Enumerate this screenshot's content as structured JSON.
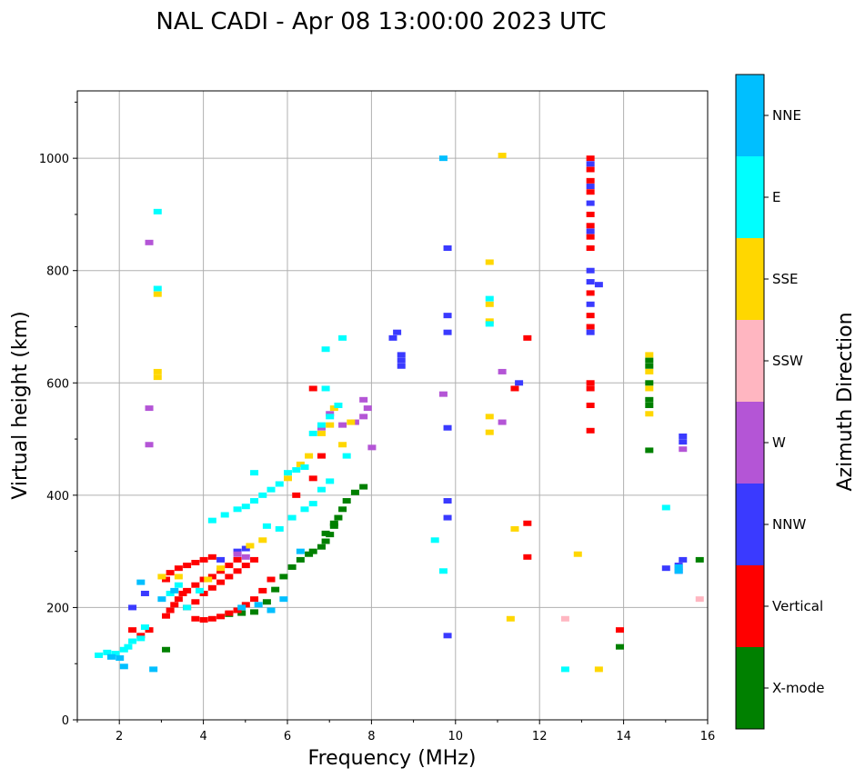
{
  "chart_data": {
    "type": "scatter",
    "title": "NAL CADI - Apr 08 13:00:00 2023 UTC",
    "xlabel": "Frequency (MHz)",
    "ylabel": "Virtual height (km)",
    "xlim": [
      1,
      16
    ],
    "ylim": [
      0,
      1120
    ],
    "xticks": [
      2,
      4,
      6,
      8,
      10,
      12,
      14,
      16
    ],
    "yticks": [
      0,
      200,
      400,
      600,
      800,
      1000
    ],
    "grid": true,
    "colorbar": {
      "title": "Azimuth Direction",
      "categories": [
        {
          "name": "X-mode",
          "color": "#008000"
        },
        {
          "name": "Vertical",
          "color": "#ff0000"
        },
        {
          "name": "NNW",
          "color": "#3a3aff"
        },
        {
          "name": "W",
          "color": "#b455d6"
        },
        {
          "name": "SSW",
          "color": "#ffb6c1"
        },
        {
          "name": "SSE",
          "color": "#ffd700"
        },
        {
          "name": "E",
          "color": "#00ffff"
        },
        {
          "name": "NNE",
          "color": "#00bfff"
        }
      ]
    },
    "series": [
      {
        "name": "X-mode",
        "points": [
          [
            3.1,
            125
          ],
          [
            4.6,
            188
          ],
          [
            4.9,
            190
          ],
          [
            5.2,
            192
          ],
          [
            5.5,
            210
          ],
          [
            5.7,
            232
          ],
          [
            5.9,
            255
          ],
          [
            6.1,
            272
          ],
          [
            6.3,
            285
          ],
          [
            6.5,
            295
          ],
          [
            6.6,
            300
          ],
          [
            6.8,
            308
          ],
          [
            6.9,
            318
          ],
          [
            7.0,
            330
          ],
          [
            7.1,
            345
          ],
          [
            7.2,
            360
          ],
          [
            7.3,
            375
          ],
          [
            7.4,
            390
          ],
          [
            7.6,
            405
          ],
          [
            7.8,
            415
          ],
          [
            6.9,
            332
          ],
          [
            7.1,
            350
          ],
          [
            14.6,
            480
          ],
          [
            14.6,
            560
          ],
          [
            14.6,
            570
          ],
          [
            14.6,
            600
          ],
          [
            14.6,
            630
          ],
          [
            14.6,
            640
          ],
          [
            15.8,
            285
          ],
          [
            13.9,
            130
          ]
        ]
      },
      {
        "name": "Vertical",
        "points": [
          [
            2.3,
            160
          ],
          [
            2.5,
            150
          ],
          [
            2.7,
            160
          ],
          [
            3.1,
            185
          ],
          [
            3.2,
            195
          ],
          [
            3.3,
            205
          ],
          [
            3.4,
            215
          ],
          [
            3.5,
            225
          ],
          [
            3.6,
            230
          ],
          [
            3.8,
            240
          ],
          [
            4.0,
            250
          ],
          [
            4.2,
            255
          ],
          [
            4.4,
            265
          ],
          [
            4.6,
            275
          ],
          [
            4.8,
            285
          ],
          [
            3.1,
            250
          ],
          [
            3.2,
            262
          ],
          [
            3.4,
            270
          ],
          [
            3.6,
            275
          ],
          [
            3.8,
            280
          ],
          [
            4.0,
            285
          ],
          [
            4.2,
            290
          ],
          [
            3.8,
            180
          ],
          [
            4.0,
            178
          ],
          [
            4.2,
            180
          ],
          [
            4.4,
            184
          ],
          [
            4.6,
            190
          ],
          [
            4.8,
            195
          ],
          [
            5.0,
            205
          ],
          [
            5.2,
            215
          ],
          [
            5.4,
            230
          ],
          [
            5.6,
            250
          ],
          [
            3.6,
            200
          ],
          [
            3.8,
            210
          ],
          [
            4.0,
            225
          ],
          [
            4.2,
            235
          ],
          [
            4.4,
            245
          ],
          [
            4.6,
            255
          ],
          [
            4.8,
            265
          ],
          [
            5.0,
            275
          ],
          [
            5.2,
            285
          ],
          [
            6.2,
            400
          ],
          [
            6.6,
            430
          ],
          [
            6.8,
            470
          ],
          [
            6.6,
            590
          ],
          [
            11.7,
            290
          ],
          [
            11.7,
            350
          ],
          [
            13.2,
            515
          ],
          [
            13.2,
            560
          ],
          [
            13.2,
            590
          ],
          [
            13.2,
            600
          ],
          [
            13.2,
            700
          ],
          [
            13.2,
            720
          ],
          [
            13.2,
            760
          ],
          [
            13.2,
            840
          ],
          [
            13.2,
            860
          ],
          [
            13.2,
            880
          ],
          [
            13.2,
            900
          ],
          [
            13.2,
            940
          ],
          [
            13.2,
            960
          ],
          [
            13.2,
            980
          ],
          [
            13.2,
            1000
          ],
          [
            13.9,
            160
          ],
          [
            11.4,
            590
          ],
          [
            11.7,
            680
          ]
        ]
      },
      {
        "name": "NNW",
        "points": [
          [
            2.3,
            200
          ],
          [
            2.6,
            225
          ],
          [
            4.4,
            285
          ],
          [
            4.8,
            300
          ],
          [
            5.0,
            305
          ],
          [
            8.5,
            680
          ],
          [
            8.6,
            690
          ],
          [
            8.7,
            630
          ],
          [
            8.7,
            640
          ],
          [
            8.7,
            650
          ],
          [
            9.8,
            150
          ],
          [
            9.8,
            360
          ],
          [
            9.8,
            390
          ],
          [
            9.8,
            520
          ],
          [
            9.8,
            690
          ],
          [
            9.8,
            720
          ],
          [
            9.8,
            840
          ],
          [
            11.5,
            600
          ],
          [
            13.2,
            690
          ],
          [
            13.2,
            740
          ],
          [
            13.2,
            780
          ],
          [
            13.2,
            800
          ],
          [
            13.2,
            870
          ],
          [
            13.2,
            920
          ],
          [
            13.2,
            950
          ],
          [
            13.2,
            990
          ],
          [
            13.4,
            775
          ],
          [
            15.0,
            270
          ],
          [
            15.3,
            265
          ],
          [
            15.3,
            275
          ],
          [
            15.4,
            285
          ],
          [
            15.4,
            495
          ],
          [
            15.4,
            505
          ]
        ]
      },
      {
        "name": "W",
        "points": [
          [
            2.7,
            850
          ],
          [
            2.7,
            555
          ],
          [
            2.7,
            490
          ],
          [
            4.8,
            295
          ],
          [
            5.0,
            290
          ],
          [
            6.8,
            520
          ],
          [
            7.0,
            545
          ],
          [
            7.3,
            525
          ],
          [
            7.6,
            530
          ],
          [
            7.8,
            540
          ],
          [
            7.8,
            570
          ],
          [
            7.9,
            555
          ],
          [
            8.0,
            485
          ],
          [
            9.7,
            580
          ],
          [
            11.1,
            530
          ],
          [
            11.1,
            620
          ],
          [
            15.4,
            482
          ]
        ]
      },
      {
        "name": "SSW",
        "points": [
          [
            12.6,
            180
          ],
          [
            15.8,
            215
          ]
        ]
      },
      {
        "name": "SSE",
        "points": [
          [
            2.9,
            610
          ],
          [
            2.9,
            620
          ],
          [
            2.9,
            758
          ],
          [
            3.0,
            255
          ],
          [
            3.4,
            255
          ],
          [
            4.1,
            250
          ],
          [
            4.4,
            270
          ],
          [
            5.1,
            310
          ],
          [
            5.4,
            320
          ],
          [
            6.0,
            430
          ],
          [
            6.3,
            455
          ],
          [
            6.5,
            470
          ],
          [
            6.8,
            510
          ],
          [
            7.0,
            525
          ],
          [
            7.1,
            555
          ],
          [
            7.3,
            490
          ],
          [
            7.5,
            530
          ],
          [
            10.8,
            512
          ],
          [
            10.8,
            540
          ],
          [
            10.8,
            710
          ],
          [
            10.8,
            740
          ],
          [
            10.8,
            815
          ],
          [
            11.1,
            1005
          ],
          [
            11.3,
            180
          ],
          [
            11.4,
            340
          ],
          [
            12.9,
            295
          ],
          [
            13.4,
            90
          ],
          [
            14.6,
            545
          ],
          [
            14.6,
            590
          ],
          [
            14.6,
            620
          ],
          [
            14.6,
            650
          ]
        ]
      },
      {
        "name": "E",
        "points": [
          [
            1.5,
            115
          ],
          [
            1.7,
            120
          ],
          [
            1.9,
            118
          ],
          [
            2.1,
            125
          ],
          [
            2.2,
            130
          ],
          [
            2.3,
            140
          ],
          [
            2.5,
            145
          ],
          [
            2.6,
            165
          ],
          [
            2.9,
            905
          ],
          [
            2.9,
            768
          ],
          [
            3.2,
            225
          ],
          [
            3.4,
            240
          ],
          [
            3.6,
            200
          ],
          [
            3.9,
            230
          ],
          [
            4.2,
            355
          ],
          [
            4.5,
            365
          ],
          [
            4.8,
            375
          ],
          [
            5.0,
            380
          ],
          [
            5.2,
            390
          ],
          [
            5.4,
            400
          ],
          [
            5.6,
            410
          ],
          [
            5.8,
            420
          ],
          [
            6.0,
            440
          ],
          [
            6.2,
            445
          ],
          [
            6.4,
            450
          ],
          [
            6.6,
            510
          ],
          [
            6.8,
            525
          ],
          [
            7.0,
            540
          ],
          [
            7.2,
            560
          ],
          [
            6.9,
            590
          ],
          [
            5.2,
            440
          ],
          [
            5.5,
            345
          ],
          [
            5.8,
            340
          ],
          [
            6.1,
            360
          ],
          [
            6.4,
            375
          ],
          [
            6.6,
            385
          ],
          [
            6.8,
            410
          ],
          [
            7.0,
            425
          ],
          [
            7.4,
            470
          ],
          [
            6.9,
            660
          ],
          [
            7.3,
            680
          ],
          [
            10.8,
            705
          ],
          [
            10.8,
            750
          ],
          [
            9.5,
            320
          ],
          [
            12.6,
            90
          ],
          [
            15.0,
            378
          ],
          [
            9.7,
            265
          ]
        ]
      },
      {
        "name": "NNE",
        "points": [
          [
            1.8,
            112
          ],
          [
            2.0,
            110
          ],
          [
            2.1,
            95
          ],
          [
            2.5,
            245
          ],
          [
            2.8,
            90
          ],
          [
            3.0,
            215
          ],
          [
            3.3,
            230
          ],
          [
            4.9,
            200
          ],
          [
            5.3,
            205
          ],
          [
            5.6,
            195
          ],
          [
            5.9,
            215
          ],
          [
            6.3,
            300
          ],
          [
            9.7,
            1000
          ],
          [
            15.3,
            265
          ],
          [
            15.3,
            272
          ]
        ]
      }
    ]
  }
}
